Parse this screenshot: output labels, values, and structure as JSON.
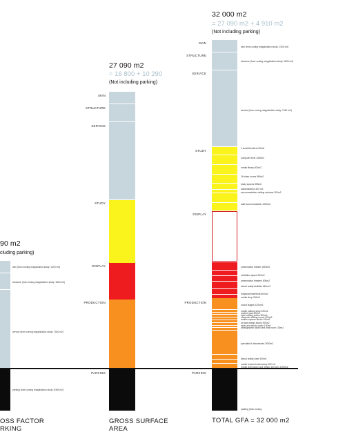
{
  "col1": {
    "heading_partial": "90 m2",
    "note_partial": "cluding parking)",
    "annotations": [
      "skin (from zoning reapplication study: 1300 m2)",
      "structure (from zoning reapplication study: 1820 m2)",
      "service (from zoning reapplication study: 7440 m2)",
      "parking (from zoning reapplication study: 8360 m2)"
    ],
    "caption_line1": "OSS FACTOR",
    "caption_line2": "RKING"
  },
  "col2": {
    "heading": "27 090 m2",
    "sum": "= 16 800 + 10 290",
    "note": "(Not including parking)",
    "labels": {
      "skin": "SKIN",
      "structure": "STRUCTURE",
      "service": "SERVICE",
      "study": "STUDY",
      "display": "DISPLAY",
      "production": "PRODUCTION",
      "parking": "PARKING"
    },
    "caption_line1": "GROSS SURFACE",
    "caption_line2": "AREA"
  },
  "col3": {
    "heading": "32 000 m2",
    "sum": "= 27 090 m2 + 4 910 m2",
    "note": "(Not including parking)",
    "labels": {
      "skin": "SKIN",
      "structure": "STRUCTURE",
      "service": "SERVICE",
      "study": "STUDY",
      "display": "DISPLAY",
      "production": "PRODUCTION",
      "parking": "PARKING"
    },
    "annotations": {
      "skin": "skin (from zoning reapplication study: 1300 m2)",
      "structure": "structure (from zoning reapplication study: 1820 m2)",
      "service": "service (from zoning reapplication study: 7440 m2)",
      "study": [
        "4 small theaters 240m2",
        "computer lexis 1360m2",
        "media library 600m2",
        "16 class rooms 960m2",
        "study spaces 555m2",
        "administration 200 m2",
        "accommodation visiting scholars 300m2",
        "staff accommodation 1600m2"
      ],
      "display": [
        "presentation theater 1600m2",
        "exhibition space 200m2",
        "presentation theaters 600m2",
        "virtual reality facilities 660 m2",
        "restaurant/cafeteria 600m2",
        "media shop 200m2"
      ],
      "production": [
        "sound stages 1200m2",
        "model making shop 200m2",
        "control room 50m2",
        "open editing suites 300m2",
        "computer editing rooms 320m2",
        "motion capture studio 100m2",
        "art and design studio 300m2",
        "radio and music studio 150m2",
        "photographic studio and dark room 100m2",
        "specialist it laboratories 2900m2",
        "virtual reality cave 300m2",
        "media research laboratory 500 m2",
        "media technology and design services 1000m2"
      ],
      "parking": "parking (from zoning"
    },
    "caption": "TOTAL GFA = 32 000 m2"
  },
  "colors": {
    "service_blue": "#c7d5dd",
    "study_yellow": "#fbf31c",
    "display_red": "#ee1b1f",
    "production_orange": "#f7901e",
    "parking_black": "#0b0b0b",
    "outline_red": "#d21a22",
    "sum_grey": "#a8bfcb"
  }
}
